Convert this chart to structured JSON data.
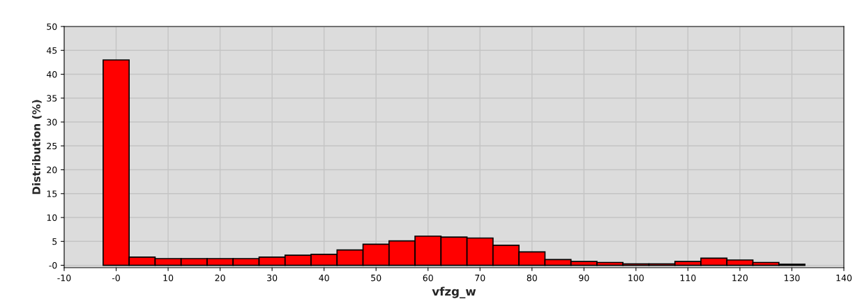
{
  "chart_data": {
    "type": "histogram",
    "xlabel": "vfzg_w",
    "ylabel": "Distribution (%)",
    "bins": [
      -2.5,
      2.5,
      7.5,
      12.5,
      17.5,
      22.5,
      27.5,
      32.5,
      37.5,
      42.5,
      47.5,
      52.5,
      57.5,
      62.5,
      67.5,
      72.5,
      77.5,
      82.5,
      87.5,
      92.5,
      97.5,
      102.5,
      107.5,
      112.5,
      117.5,
      122.5,
      127.5,
      132.5
    ],
    "values": [
      43.0,
      1.7,
      1.4,
      1.4,
      1.4,
      1.4,
      1.7,
      2.1,
      2.3,
      3.2,
      4.4,
      5.1,
      6.1,
      5.9,
      5.7,
      4.2,
      2.8,
      1.2,
      0.8,
      0.6,
      0.3,
      0.3,
      0.8,
      1.5,
      1.1,
      0.6,
      0.2
    ],
    "color": "#ff0000",
    "xlim": [
      -10,
      140
    ],
    "xticks": [
      -10,
      {
        "value": 0,
        "label": "-0"
      },
      10,
      20,
      30,
      40,
      50,
      60,
      70,
      80,
      90,
      100,
      110,
      120,
      130,
      140
    ],
    "ylim": [
      -0.5,
      50
    ],
    "yticks": [
      {
        "value": 0,
        "label": "-0"
      },
      5,
      10,
      15,
      20,
      25,
      30,
      35,
      40,
      45,
      50
    ],
    "grid": true
  }
}
